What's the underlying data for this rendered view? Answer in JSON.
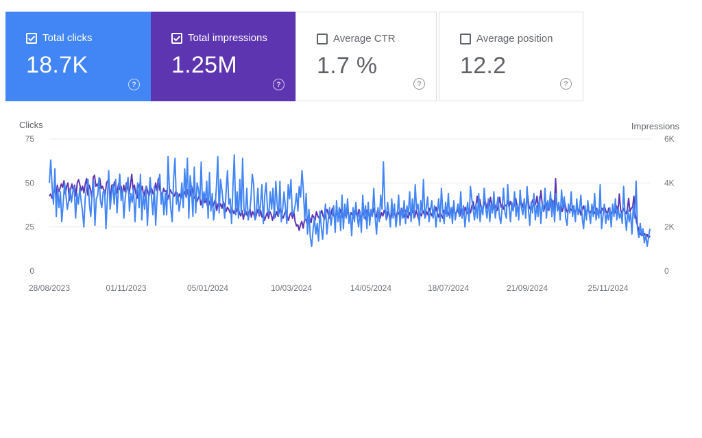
{
  "cards": [
    {
      "label": "Total clicks",
      "value": "18.7K",
      "checked": true
    },
    {
      "label": "Total impressions",
      "value": "1.25M",
      "checked": true
    },
    {
      "label": "Average CTR",
      "value": "1.7 %",
      "checked": false
    },
    {
      "label": "Average position",
      "value": "12.2",
      "checked": false
    }
  ],
  "help_glyph": "?",
  "colors": {
    "clicks": "#4285f4",
    "impressions": "#5e35b1",
    "grid": "#e8eaed"
  },
  "chart_data": {
    "type": "line",
    "x_start": "28/08/2023",
    "x_end": "29/12/2024",
    "x_tick_labels": [
      "28/08/2023",
      "01/11/2023",
      "05/01/2024",
      "10/03/2024",
      "14/05/2024",
      "18/07/2024",
      "21/09/2024",
      "25/11/2024"
    ],
    "y_left": {
      "title": "Clicks",
      "ticks": [
        "0",
        "25",
        "50",
        "75"
      ],
      "range": [
        0,
        75
      ]
    },
    "y_right": {
      "title": "Impressions",
      "ticks": [
        "0",
        "2K",
        "4K",
        "6K"
      ],
      "range": [
        0,
        6000
      ]
    },
    "series": [
      {
        "name": "Clicks",
        "axis": "left",
        "values": [
          50,
          63,
          48,
          38,
          58,
          31,
          47,
          36,
          45,
          28,
          38,
          50,
          43,
          35,
          40,
          47,
          39,
          45,
          48,
          30,
          44,
          38,
          47,
          40,
          34,
          25,
          42,
          47,
          52,
          38,
          31,
          44,
          51,
          26,
          41,
          43,
          53,
          40,
          36,
          45,
          46,
          24,
          41,
          57,
          35,
          43,
          49,
          38,
          52,
          33,
          46,
          55,
          40,
          46,
          30,
          42,
          48,
          53,
          34,
          44,
          39,
          47,
          28,
          43,
          50,
          36,
          55,
          29,
          44,
          35,
          48,
          26,
          42,
          53,
          42,
          32,
          48,
          26,
          42,
          50,
          55,
          38,
          45,
          32,
          44,
          32,
          65,
          45,
          35,
          28,
          52,
          64,
          38,
          44,
          34,
          40,
          50,
          36,
          58,
          42,
          64,
          30,
          54,
          46,
          31,
          59,
          33,
          50,
          46,
          40,
          62,
          36,
          45,
          40,
          51,
          30,
          56,
          34,
          44,
          29,
          36,
          48,
          65,
          33,
          52,
          46,
          38,
          30,
          45,
          57,
          38,
          41,
          27,
          48,
          66,
          32,
          45,
          30,
          52,
          33,
          64,
          35,
          32,
          47,
          29,
          33,
          41,
          55,
          49,
          29,
          34,
          47,
          32,
          38,
          49,
          27,
          43,
          50,
          35,
          32,
          45,
          35,
          47,
          30,
          51,
          38,
          31,
          51,
          28,
          35,
          45,
          36,
          27,
          49,
          41,
          52,
          32,
          33,
          37,
          44,
          34,
          48,
          42,
          57,
          46,
          29,
          44,
          21,
          35,
          19,
          14,
          23,
          30,
          21,
          27,
          17,
          34,
          25,
          18,
          30,
          38,
          21,
          29,
          36,
          26,
          32,
          37,
          22,
          40,
          28,
          36,
          23,
          43,
          24,
          38,
          30,
          41,
          27,
          33,
          20,
          36,
          28,
          39,
          31,
          25,
          34,
          22,
          43,
          30,
          37,
          24,
          39,
          26,
          35,
          31,
          47,
          30,
          21,
          36,
          28,
          43,
          35,
          62,
          37,
          29,
          39,
          33,
          25,
          41,
          30,
          38,
          25,
          32,
          43,
          26,
          35,
          30,
          40,
          27,
          37,
          32,
          45,
          28,
          41,
          30,
          49,
          35,
          38,
          26,
          40,
          33,
          52,
          30,
          36,
          42,
          28,
          34,
          40,
          30,
          37,
          25,
          33,
          41,
          28,
          47,
          34,
          27,
          39,
          31,
          44,
          30,
          36,
          27,
          40,
          29,
          34,
          38,
          31,
          45,
          30,
          37,
          25,
          33,
          39,
          28,
          48,
          41,
          35,
          29,
          38,
          30,
          44,
          28,
          37,
          32,
          47,
          36,
          30,
          41,
          28,
          38,
          33,
          45,
          30,
          37,
          42,
          31,
          27,
          36,
          47,
          33,
          30,
          49,
          37,
          28,
          39,
          34,
          45,
          31,
          38,
          29,
          46,
          36,
          32,
          41,
          30,
          48,
          35,
          26,
          39,
          33,
          44,
          29,
          37,
          31,
          42,
          27,
          38,
          34,
          47,
          30,
          40,
          35,
          45,
          31,
          40,
          28,
          44,
          34,
          39,
          29,
          46,
          36,
          42,
          30,
          26,
          38,
          33,
          45,
          31,
          37,
          28,
          41,
          32,
          35,
          43,
          30,
          24,
          37,
          29,
          40,
          33,
          27,
          38,
          31,
          44,
          29,
          35,
          30,
          49,
          24,
          31,
          38,
          27,
          33,
          29,
          36,
          25,
          38,
          31,
          41,
          29,
          36,
          30,
          33,
          27,
          48,
          31,
          23,
          35,
          28,
          33,
          21,
          37,
          30,
          51,
          24,
          19,
          27,
          20,
          24,
          16,
          21,
          14,
          19,
          24
        ],
        "approximate": true
      },
      {
        "name": "Impressions",
        "axis": "right",
        "values": [
          3400,
          3500,
          3300,
          3450,
          3800,
          3350,
          3900,
          3600,
          3750,
          3950,
          3800,
          4100,
          3500,
          3850,
          4000,
          3200,
          3700,
          3950,
          3650,
          3900,
          3400,
          4000,
          4150,
          3900,
          3650,
          3850,
          3550,
          3950,
          4200,
          3450,
          3900,
          3700,
          3300,
          4250,
          4350,
          3850,
          3950,
          3800,
          4200,
          3750,
          3850,
          3650,
          3450,
          4000,
          4100,
          3950,
          3250,
          3900,
          3750,
          4050,
          3850,
          3550,
          3950,
          3700,
          3850,
          3450,
          3900,
          3600,
          4000,
          3750,
          3500,
          3900,
          4400,
          3700,
          3900,
          3550,
          3300,
          3800,
          3950,
          3650,
          3850,
          3350,
          3650,
          3850,
          3600,
          3400,
          3700,
          3750,
          3500,
          3600,
          4000,
          3650,
          4200,
          3700,
          3550,
          3450,
          3750,
          3600,
          3650,
          3250,
          3450,
          3700,
          3550,
          3500,
          3400,
          3600,
          3550,
          3350,
          3500,
          3300,
          3550,
          3450,
          3600,
          3350,
          3700,
          3500,
          3400,
          3850,
          3600,
          3300,
          3400,
          3150,
          3300,
          3450,
          3000,
          3250,
          3500,
          3100,
          3300,
          2950,
          3200,
          3000,
          3150,
          2900,
          3100,
          3250,
          2750,
          3050,
          2900,
          3050,
          2850,
          3150,
          2950,
          2700,
          2900,
          2800,
          2650,
          2850,
          2750,
          2600,
          2800,
          2700,
          2900,
          2650,
          2500,
          2750,
          2350,
          2650,
          2700,
          2500,
          2550,
          2850,
          2450,
          2700,
          2550,
          2350,
          2600,
          2800,
          2500,
          2750,
          2450,
          2600,
          2300,
          2500,
          2650,
          2400,
          2700,
          2550,
          2300,
          2600,
          2450,
          2700,
          2500,
          2650,
          2850,
          2500,
          2400,
          2600,
          2750,
          2500,
          2300,
          2550,
          2650,
          2400,
          2700,
          2250,
          2050,
          2100,
          1850,
          2100,
          2250,
          1950,
          2300,
          2350,
          2150,
          2500,
          2400,
          2200,
          2550,
          2450,
          2300,
          2700,
          2500,
          2400,
          2600,
          2750,
          2500,
          2350,
          2650,
          2800,
          2550,
          2400,
          2600,
          2850,
          2550,
          2350,
          2700,
          2500,
          2450,
          2800,
          2550,
          2400,
          2650,
          2500,
          2750,
          2550,
          2350,
          2650,
          2550,
          2400,
          2750,
          2600,
          2450,
          2800,
          2550,
          2400,
          2650,
          2500,
          2350,
          2750,
          2600,
          2450,
          2700,
          2500,
          2850,
          2600,
          2450,
          2750,
          2550,
          2400,
          2650,
          2500,
          2750,
          2600,
          2400,
          2700,
          2550,
          2350,
          2650,
          2800,
          2550,
          2450,
          2700,
          2600,
          2500,
          2850,
          2650,
          2450,
          2750,
          2550,
          2400,
          2650,
          2500,
          2800,
          2600,
          2450,
          2750,
          2550,
          2350,
          2650,
          2500,
          2750,
          2600,
          2450,
          2700,
          2550,
          2850,
          2650,
          2500,
          2750,
          2600,
          2900,
          2650,
          2450,
          2700,
          2550,
          2400,
          2750,
          2600,
          2850,
          2650,
          2500,
          2750,
          2600,
          2950,
          2700,
          2550,
          2800,
          2650,
          2500,
          2850,
          2700,
          2550,
          2900,
          2700,
          2600,
          2850,
          2650,
          2950,
          3150,
          2800,
          2950,
          3400,
          2900,
          3250,
          2850,
          2700,
          3000,
          3200,
          2850,
          3100,
          2900,
          3350,
          3000,
          2800,
          3050,
          2900,
          2750,
          3000,
          3350,
          2900,
          3050,
          2800,
          3000,
          2950,
          3200,
          2900,
          3150,
          2950,
          2750,
          3050,
          3300,
          2950,
          2800,
          3000,
          3200,
          2900,
          3100,
          2850,
          3000,
          3450,
          2950,
          2800,
          3100,
          3250,
          2950,
          3050,
          3400,
          2850,
          3100,
          3650,
          3000,
          2700,
          2950,
          3100,
          2900,
          2750,
          3000,
          3250,
          2850,
          2750,
          4200,
          3000,
          2850,
          2750,
          3000,
          2700,
          2900,
          3100,
          2800,
          2650,
          2900,
          2850,
          2750,
          2950,
          2800,
          2650,
          2900,
          2700,
          2850,
          2550,
          2800,
          2950,
          2700,
          2550,
          2800,
          2700,
          2650,
          2750,
          2900,
          2600,
          2700,
          2850,
          2650,
          2750,
          2600,
          2850,
          2750,
          2900,
          2700,
          2600,
          2850,
          2700,
          2600,
          2750,
          2800,
          2650,
          2950,
          2700,
          3500,
          2750,
          2650,
          2850,
          2700,
          2600,
          2800,
          3300,
          2700,
          2850,
          2900,
          3400,
          2600,
          2200,
          2000,
          1800,
          1650,
          1750,
          1600,
          1700,
          1550,
          1650,
          1500,
          1600
        ],
        "approximate": true
      }
    ]
  }
}
